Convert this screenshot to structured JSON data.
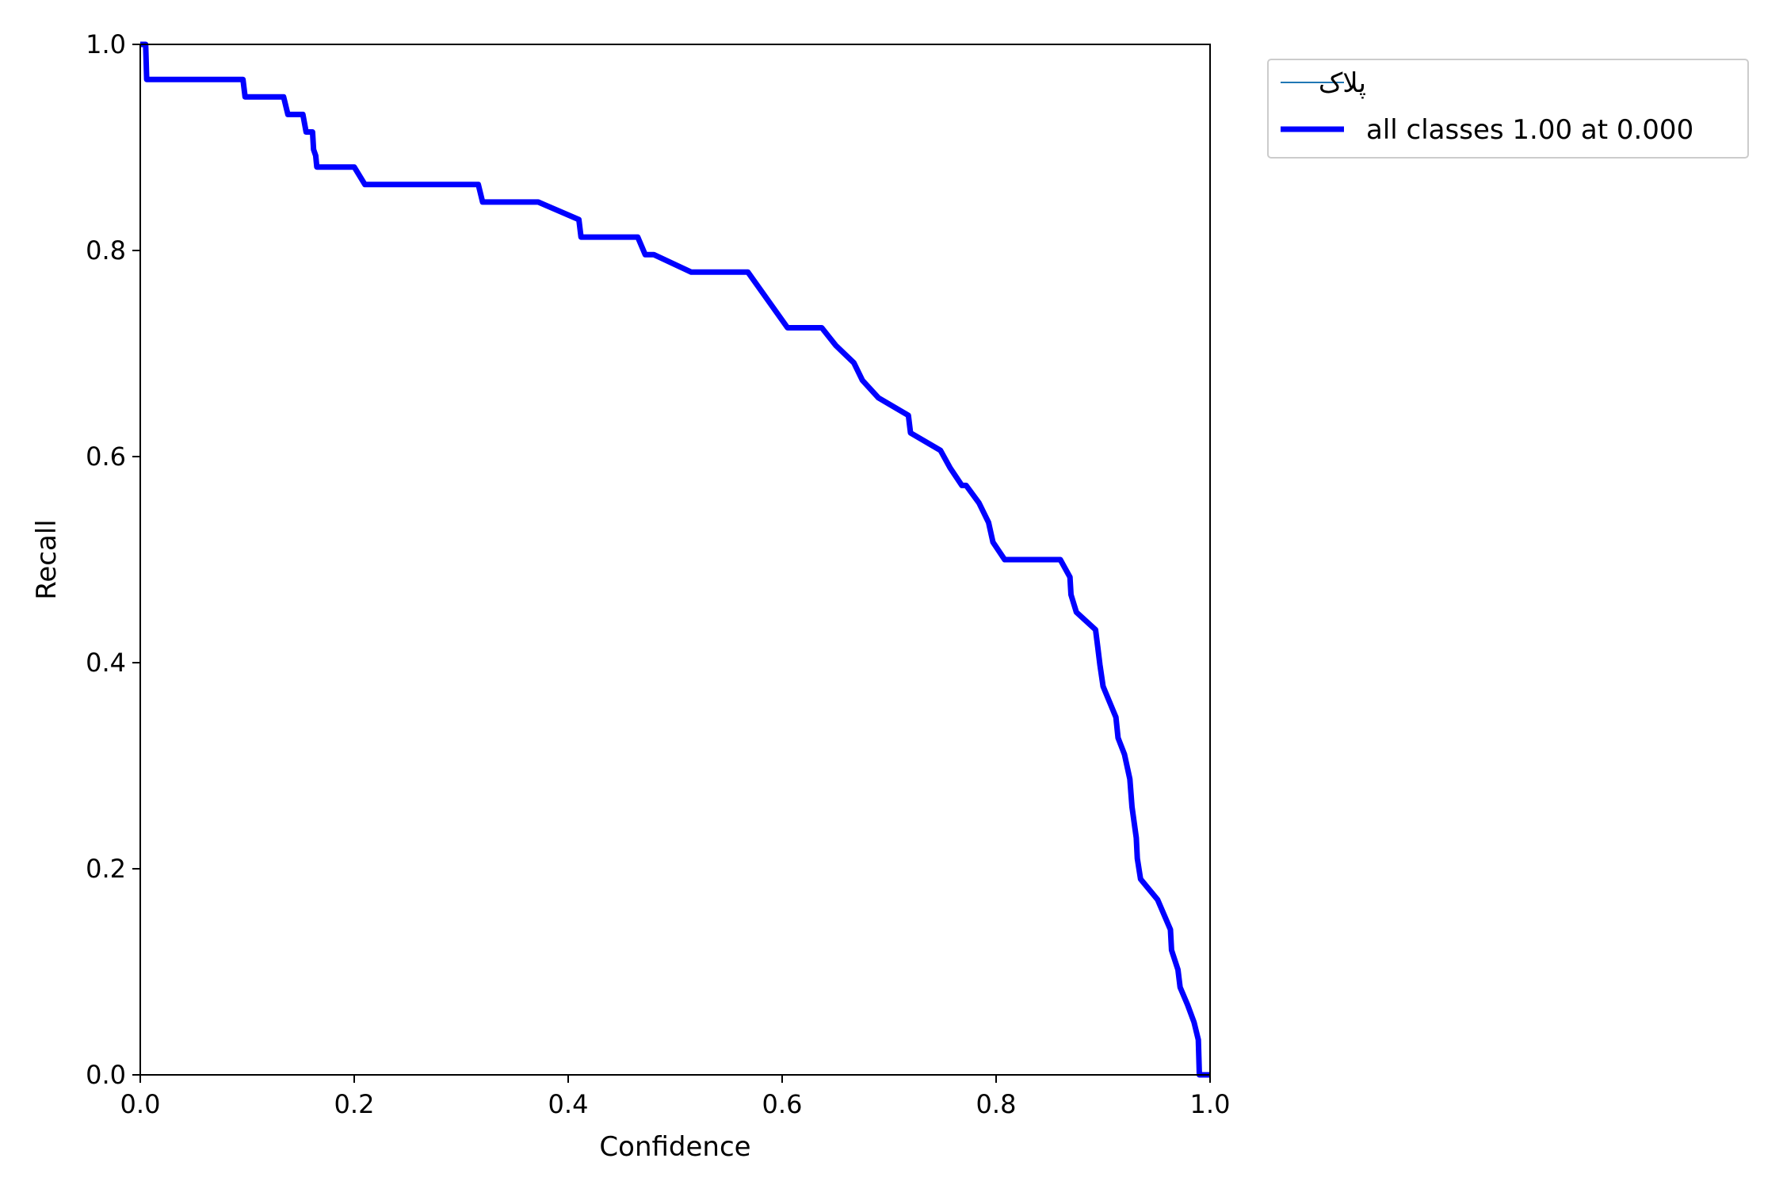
{
  "chart_data": {
    "type": "line",
    "title": "",
    "xlabel": "Confidence",
    "ylabel": "Recall",
    "xlim": [
      0,
      1
    ],
    "ylim": [
      0,
      1
    ],
    "xticks": [
      "0.0",
      "0.2",
      "0.4",
      "0.6",
      "0.8",
      "1.0"
    ],
    "yticks": [
      "0.0",
      "0.2",
      "0.4",
      "0.6",
      "0.8",
      "1.0"
    ],
    "grid": false,
    "legend_position": "outside-top-right",
    "series": [
      {
        "name": "پلاک",
        "color": "#1f77b4",
        "line": "thin",
        "x": [
          0.0,
          0.005,
          0.006,
          0.096,
          0.098,
          0.134,
          0.138,
          0.152,
          0.155,
          0.161,
          0.162,
          0.164,
          0.165,
          0.2,
          0.21,
          0.316,
          0.32,
          0.372,
          0.41,
          0.412,
          0.465,
          0.472,
          0.48,
          0.515,
          0.568,
          0.605,
          0.637,
          0.65,
          0.667,
          0.675,
          0.69,
          0.718,
          0.72,
          0.748,
          0.757,
          0.768,
          0.772,
          0.784,
          0.793,
          0.797,
          0.808,
          0.86,
          0.869,
          0.87,
          0.875,
          0.893,
          0.895,
          0.897,
          0.9,
          0.912,
          0.914,
          0.92,
          0.925,
          0.927,
          0.931,
          0.932,
          0.935,
          0.951,
          0.963,
          0.964,
          0.97,
          0.972,
          0.979,
          0.985,
          0.989,
          0.99,
          1.0
        ],
        "y": [
          1.0,
          1.0,
          0.966,
          0.966,
          0.949,
          0.949,
          0.932,
          0.932,
          0.915,
          0.915,
          0.898,
          0.892,
          0.881,
          0.881,
          0.864,
          0.864,
          0.847,
          0.847,
          0.83,
          0.813,
          0.813,
          0.796,
          0.796,
          0.779,
          0.779,
          0.725,
          0.725,
          0.708,
          0.691,
          0.674,
          0.657,
          0.64,
          0.623,
          0.606,
          0.589,
          0.572,
          0.572,
          0.555,
          0.536,
          0.517,
          0.5,
          0.5,
          0.483,
          0.466,
          0.449,
          0.432,
          0.415,
          0.398,
          0.377,
          0.347,
          0.327,
          0.311,
          0.287,
          0.26,
          0.23,
          0.21,
          0.19,
          0.17,
          0.141,
          0.121,
          0.102,
          0.085,
          0.068,
          0.051,
          0.034,
          0.0,
          0.0
        ]
      },
      {
        "name": "all classes 1.00 at 0.000",
        "color": "#0000ff",
        "line": "thick",
        "x": [
          0.0,
          0.005,
          0.006,
          0.096,
          0.098,
          0.134,
          0.138,
          0.152,
          0.155,
          0.161,
          0.162,
          0.164,
          0.165,
          0.2,
          0.21,
          0.316,
          0.32,
          0.372,
          0.41,
          0.412,
          0.465,
          0.472,
          0.48,
          0.515,
          0.568,
          0.605,
          0.637,
          0.65,
          0.667,
          0.675,
          0.69,
          0.718,
          0.72,
          0.748,
          0.757,
          0.768,
          0.772,
          0.784,
          0.793,
          0.797,
          0.808,
          0.86,
          0.869,
          0.87,
          0.875,
          0.893,
          0.895,
          0.897,
          0.9,
          0.912,
          0.914,
          0.92,
          0.925,
          0.927,
          0.931,
          0.932,
          0.935,
          0.951,
          0.963,
          0.964,
          0.97,
          0.972,
          0.979,
          0.985,
          0.989,
          0.99,
          1.0
        ],
        "y": [
          1.0,
          1.0,
          0.966,
          0.966,
          0.949,
          0.949,
          0.932,
          0.932,
          0.915,
          0.915,
          0.898,
          0.892,
          0.881,
          0.881,
          0.864,
          0.864,
          0.847,
          0.847,
          0.83,
          0.813,
          0.813,
          0.796,
          0.796,
          0.779,
          0.779,
          0.725,
          0.725,
          0.708,
          0.691,
          0.674,
          0.657,
          0.64,
          0.623,
          0.606,
          0.589,
          0.572,
          0.572,
          0.555,
          0.536,
          0.517,
          0.5,
          0.5,
          0.483,
          0.466,
          0.449,
          0.432,
          0.415,
          0.398,
          0.377,
          0.347,
          0.327,
          0.311,
          0.287,
          0.26,
          0.23,
          0.21,
          0.19,
          0.17,
          0.141,
          0.121,
          0.102,
          0.085,
          0.068,
          0.051,
          0.034,
          0.0,
          0.0
        ]
      }
    ]
  }
}
